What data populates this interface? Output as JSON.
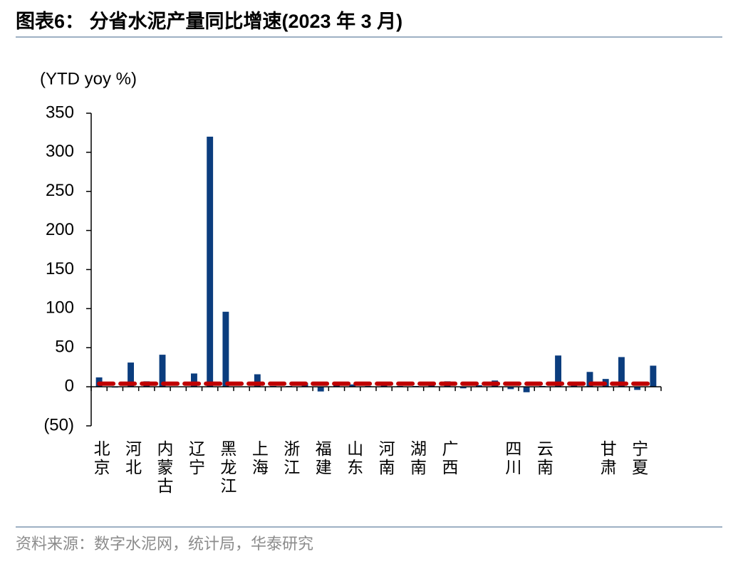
{
  "chart_data": {
    "type": "bar",
    "title": "图表6：  分省水泥产量同比增速(2023 年 3 月)",
    "y_label": "(YTD yoy %)",
    "source": "资料来源：数字水泥网，统计局，华泰研究",
    "categories": [
      "北京",
      null,
      "河北",
      null,
      "内蒙古",
      null,
      "辽宁",
      null,
      "黑龙江",
      null,
      "上海",
      null,
      "浙江",
      null,
      "福建",
      null,
      "山东",
      null,
      "河南",
      null,
      "湖南",
      null,
      "广西",
      null,
      null,
      null,
      "四川",
      null,
      "云南",
      null,
      null,
      null,
      "甘肃",
      null,
      "宁夏",
      null
    ],
    "series": [
      {
        "type": "bar",
        "color": "#0b3d7e",
        "values": [
          12,
          -1,
          31,
          7,
          41,
          0,
          17,
          320,
          96,
          0,
          16,
          1,
          1,
          5,
          -6,
          2,
          3,
          1,
          4,
          1,
          1,
          2,
          7,
          -2,
          2,
          8,
          -3,
          -7,
          1,
          40,
          2,
          19,
          10,
          38,
          -4,
          27
        ]
      },
      {
        "type": "line",
        "color": "#c00000",
        "values": [
          4,
          4,
          4,
          4,
          4,
          4,
          4,
          4,
          4,
          4,
          4,
          4,
          4,
          4,
          4,
          4,
          4,
          4,
          4,
          4,
          4,
          4,
          4,
          4,
          4,
          4,
          4,
          4,
          4,
          4,
          4,
          4,
          4,
          4,
          4,
          4
        ]
      }
    ],
    "ylim": [
      -50,
      350
    ],
    "yticks": [
      {
        "value": -50,
        "label": "(50)"
      },
      0,
      50,
      100,
      150,
      200,
      250,
      300,
      350
    ]
  }
}
